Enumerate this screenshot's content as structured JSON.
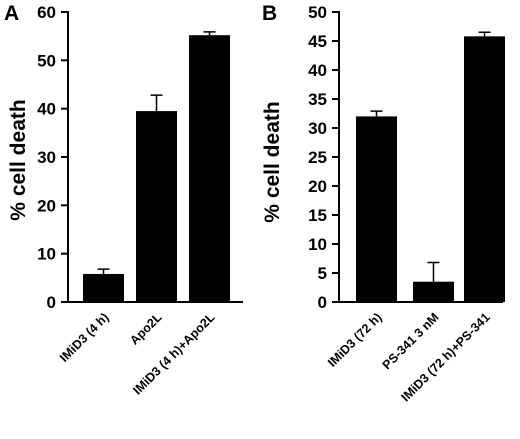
{
  "chart_data": [
    {
      "panel": "A",
      "type": "bar",
      "ylabel": "% cell death",
      "ylim": [
        0,
        60
      ],
      "yticks": [
        "0",
        "10",
        "20",
        "30",
        "40",
        "50",
        "60"
      ],
      "categories": [
        "IMiD3 (4 h)",
        "Apo2L",
        "IMiD3 (4 h)+Apo2L"
      ],
      "values": [
        5.8,
        39.5,
        55.2
      ],
      "errors": [
        1.0,
        3.3,
        0.7
      ],
      "bar_color": "#000000",
      "grid": false
    },
    {
      "panel": "B",
      "type": "bar",
      "ylabel": "% cell death",
      "ylim": [
        0,
        50
      ],
      "yticks": [
        "0",
        "5",
        "10",
        "15",
        "20",
        "25",
        "30",
        "35",
        "40",
        "45",
        "50"
      ],
      "categories": [
        "IMiD3 (72 h)",
        "PS-341 3 nM",
        "IMiD3 (72 h)+PS-341"
      ],
      "values": [
        32.0,
        3.5,
        45.8
      ],
      "errors": [
        0.9,
        3.3,
        0.7
      ],
      "bar_color": "#000000",
      "grid": false
    }
  ]
}
